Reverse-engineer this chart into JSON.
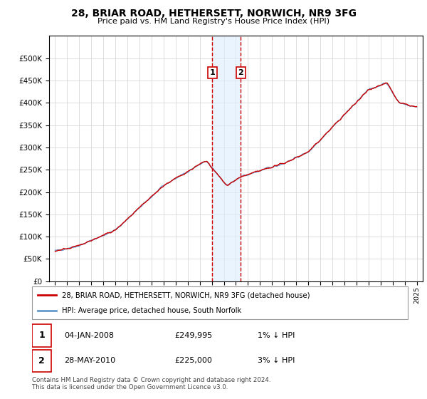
{
  "title1": "28, BRIAR ROAD, HETHERSETT, NORWICH, NR9 3FG",
  "title2": "Price paid vs. HM Land Registry's House Price Index (HPI)",
  "legend_line1": "28, BRIAR ROAD, HETHERSETT, NORWICH, NR9 3FG (detached house)",
  "legend_line2": "HPI: Average price, detached house, South Norfolk",
  "transaction1_date": "04-JAN-2008",
  "transaction1_price": "£249,995",
  "transaction1_hpi": "1% ↓ HPI",
  "transaction2_date": "28-MAY-2010",
  "transaction2_price": "£225,000",
  "transaction2_hpi": "3% ↓ HPI",
  "footer": "Contains HM Land Registry data © Crown copyright and database right 2024.\nThis data is licensed under the Open Government Licence v3.0.",
  "hpi_color": "#6699cc",
  "price_color": "#cc0000",
  "transaction1_x": 2008.04,
  "transaction2_x": 2010.41,
  "shade_color": "#ddeeff",
  "ylim_min": 0,
  "ylim_max": 550000
}
